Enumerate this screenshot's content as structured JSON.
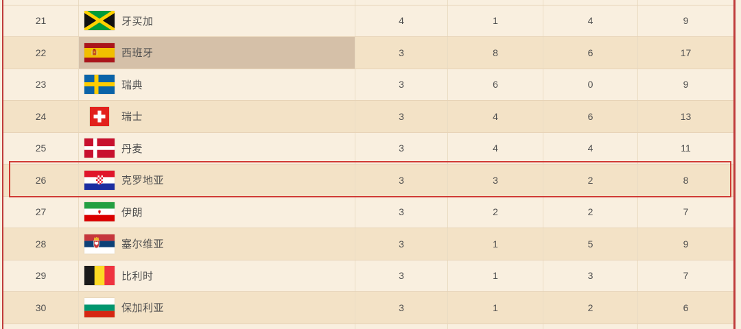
{
  "colors": {
    "page_bg": "#f8efe0",
    "row_light": "#f9efdf",
    "row_dark": "#f3e2c6",
    "hover_cell": "#d5c0a8",
    "separator": "#e7d3b7",
    "separator_v": "#eadcc3",
    "frame_red": "#bf3a3a",
    "highlight_red": "#d03a34",
    "text": "#4f4f4f"
  },
  "table": {
    "rows": [
      {
        "rank": "21",
        "country": "牙买加",
        "flag_icon": "jamaica-flag-icon",
        "gold": "4",
        "silver": "1",
        "bronze": "4",
        "total": "9"
      },
      {
        "rank": "22",
        "country": "西班牙",
        "flag_icon": "spain-flag-icon",
        "gold": "3",
        "silver": "8",
        "bronze": "6",
        "total": "17",
        "hovered": true
      },
      {
        "rank": "23",
        "country": "瑞典",
        "flag_icon": "sweden-flag-icon",
        "gold": "3",
        "silver": "6",
        "bronze": "0",
        "total": "9"
      },
      {
        "rank": "24",
        "country": "瑞士",
        "flag_icon": "switzerland-flag-icon",
        "gold": "3",
        "silver": "4",
        "bronze": "6",
        "total": "13"
      },
      {
        "rank": "25",
        "country": "丹麦",
        "flag_icon": "denmark-flag-icon",
        "gold": "3",
        "silver": "4",
        "bronze": "4",
        "total": "11"
      },
      {
        "rank": "26",
        "country": "克罗地亚",
        "flag_icon": "croatia-flag-icon",
        "gold": "3",
        "silver": "3",
        "bronze": "2",
        "total": "8",
        "highlighted": true
      },
      {
        "rank": "27",
        "country": "伊朗",
        "flag_icon": "iran-flag-icon",
        "gold": "3",
        "silver": "2",
        "bronze": "2",
        "total": "7"
      },
      {
        "rank": "28",
        "country": "塞尔维亚",
        "flag_icon": "serbia-flag-icon",
        "gold": "3",
        "silver": "1",
        "bronze": "5",
        "total": "9"
      },
      {
        "rank": "29",
        "country": "比利时",
        "flag_icon": "belgium-flag-icon",
        "gold": "3",
        "silver": "1",
        "bronze": "3",
        "total": "7"
      },
      {
        "rank": "30",
        "country": "保加利亚",
        "flag_icon": "bulgaria-flag-icon",
        "gold": "3",
        "silver": "1",
        "bronze": "2",
        "total": "6"
      }
    ]
  }
}
